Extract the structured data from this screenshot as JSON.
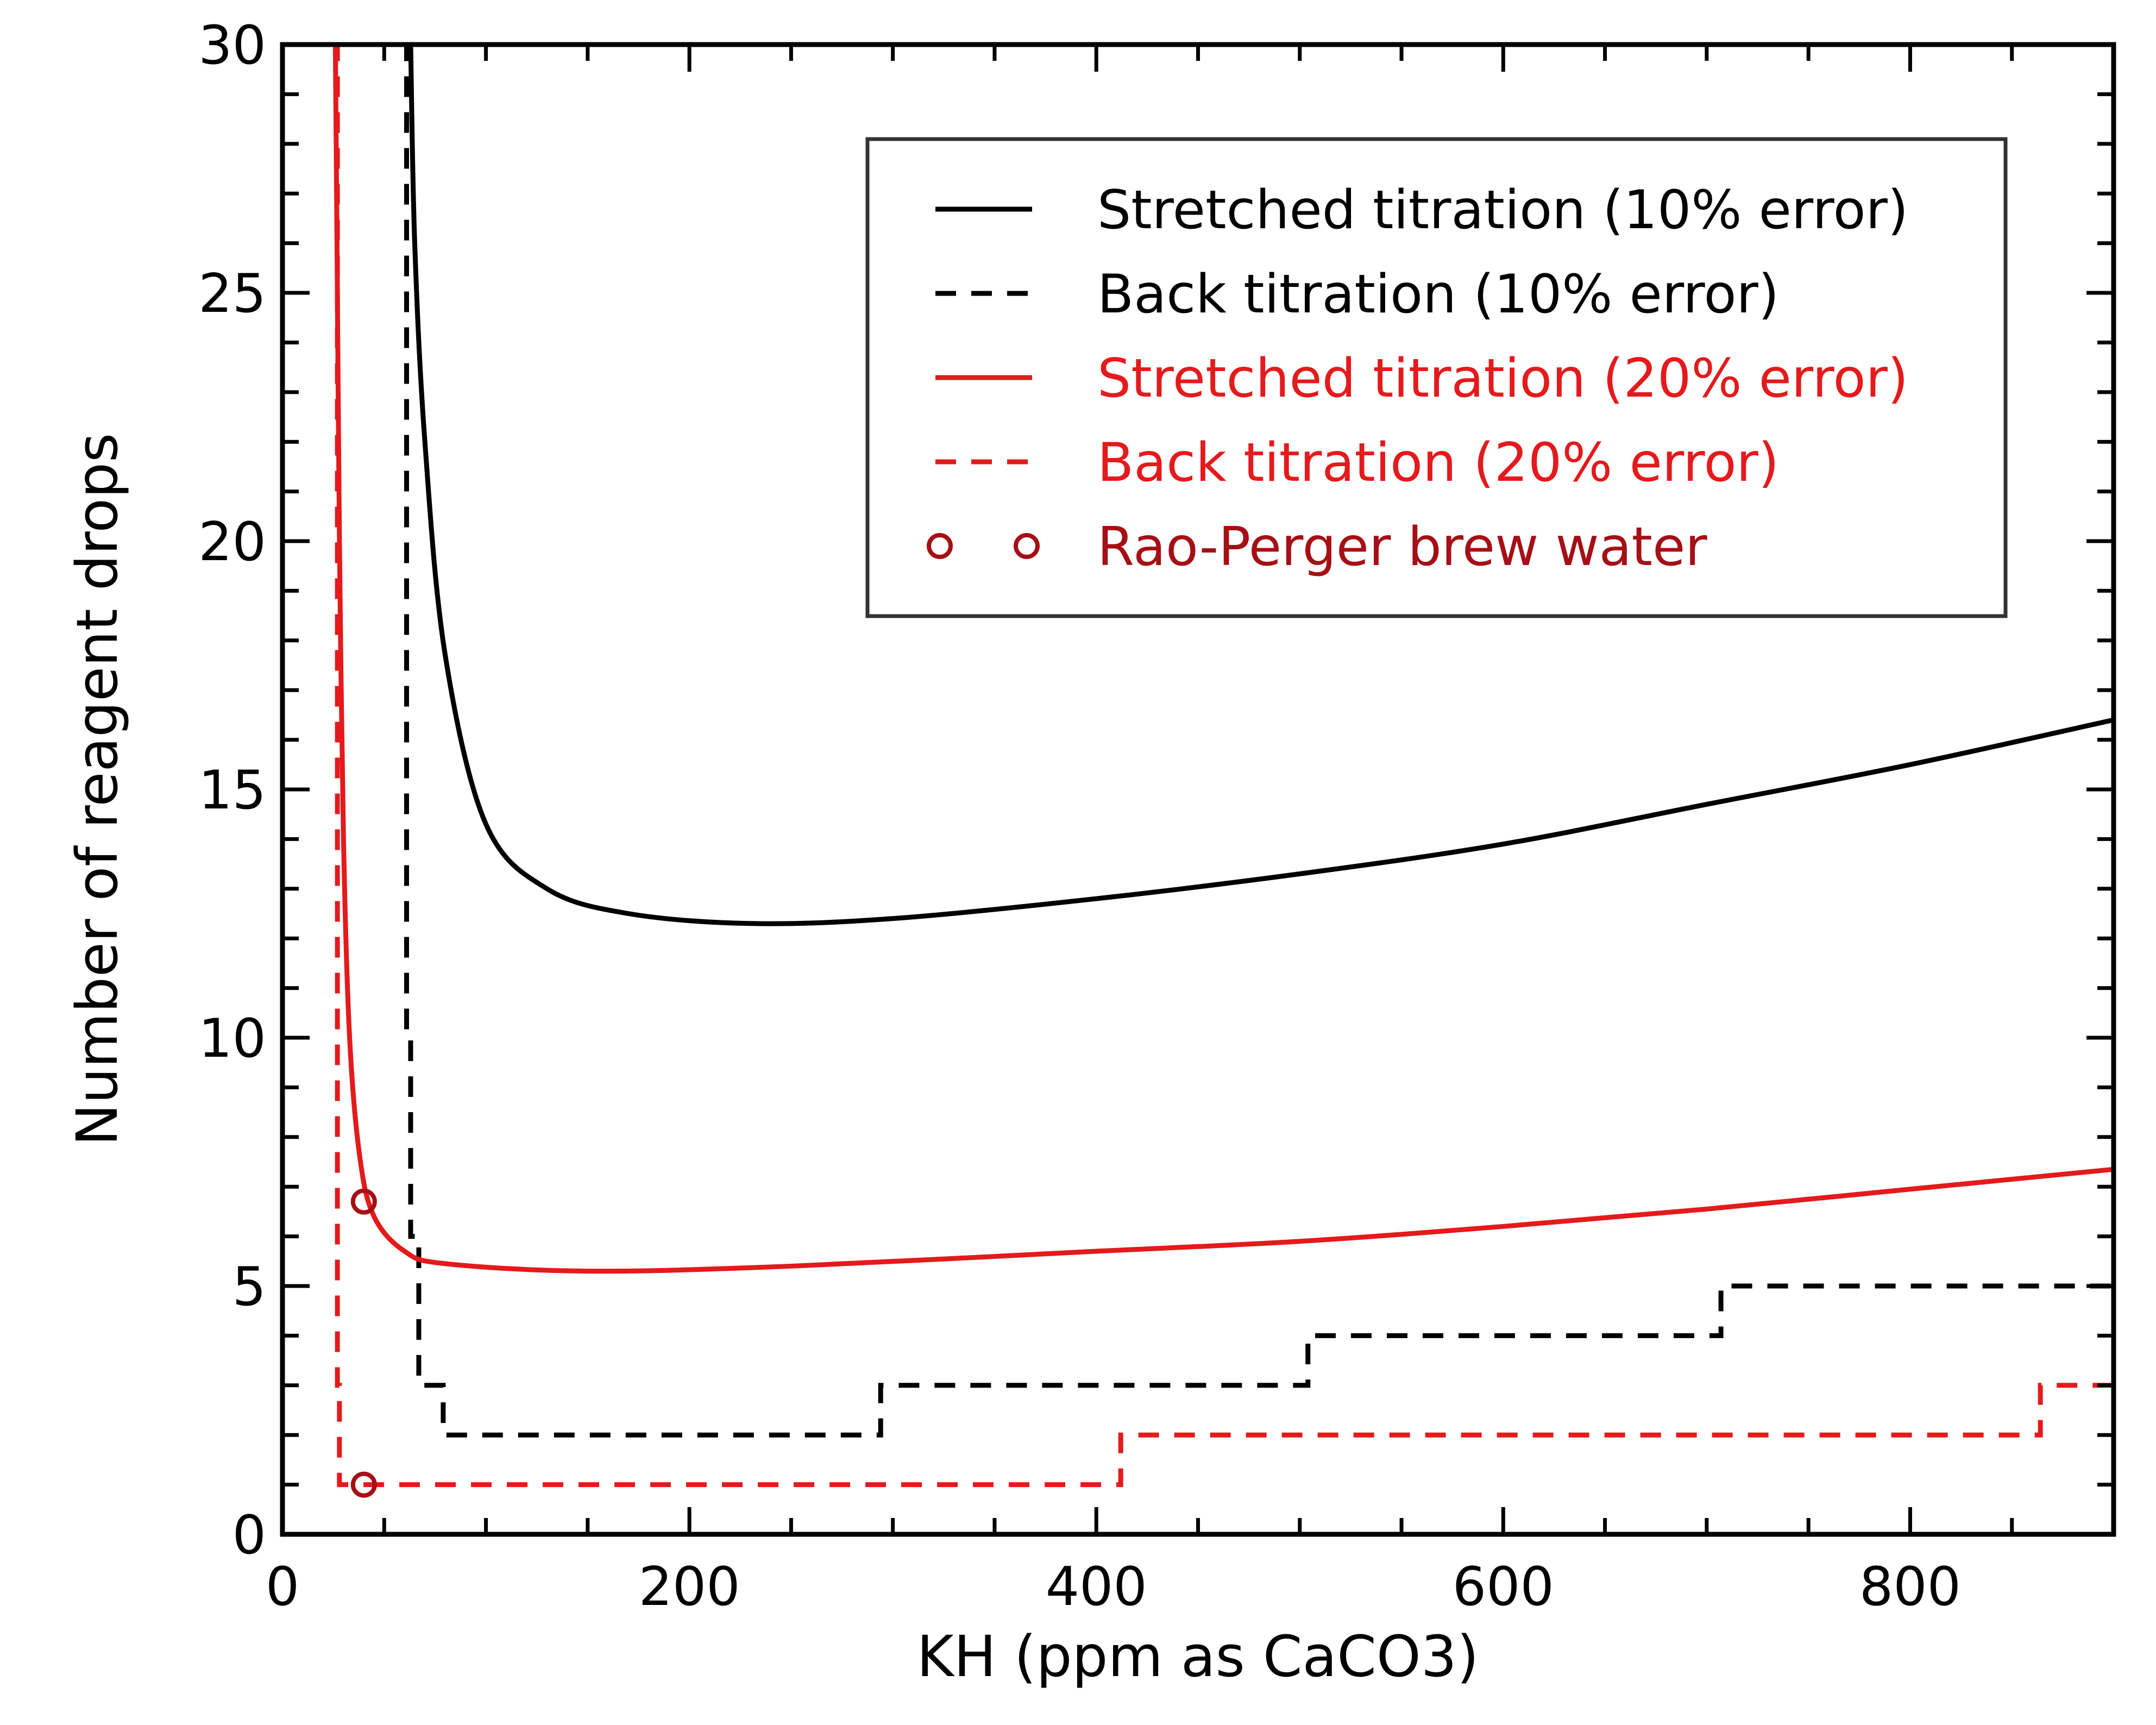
{
  "chart_data": {
    "type": "line",
    "xlabel": "KH (ppm as CaCO3)",
    "ylabel": "Number of reagent drops",
    "xlim": [
      0,
      900
    ],
    "ylim": [
      0,
      30
    ],
    "xticks": [
      0,
      200,
      400,
      600,
      800
    ],
    "yticks": [
      0,
      5,
      10,
      15,
      20,
      25,
      30
    ],
    "grid": false,
    "legend_position": "top-right",
    "colors": {
      "black": "#000000",
      "red": "#e41a1c",
      "darkred": "#a50f15"
    },
    "series": [
      {
        "name": "Stretched titration (10% error)",
        "style": "solid",
        "color": "#000000",
        "x": [
          63,
          65,
          70,
          80,
          100,
          130,
          170,
          230,
          300,
          400,
          500,
          600,
          700,
          800,
          900
        ],
        "y": [
          30,
          26,
          22,
          17.7,
          14.3,
          13.0,
          12.5,
          12.3,
          12.4,
          12.8,
          13.3,
          13.9,
          14.7,
          15.5,
          16.4
        ]
      },
      {
        "name": "Back titration (10% error)",
        "style": "dashed-step",
        "color": "#000000",
        "x": [
          59,
          61,
          63,
          67,
          79,
          294,
          504,
          707,
          900
        ],
        "y": [
          30,
          10,
          6,
          3,
          2,
          3,
          4,
          5,
          5
        ]
      },
      {
        "name": "Stretched titration (20% error)",
        "style": "solid",
        "color": "#e41a1c",
        "x": [
          26,
          27,
          28,
          30,
          33,
          38,
          45,
          60,
          80,
          150,
          250,
          400,
          500,
          600,
          700,
          800,
          900
        ],
        "y": [
          30,
          25,
          20,
          14,
          10,
          7.6,
          6.4,
          5.7,
          5.45,
          5.3,
          5.4,
          5.7,
          5.9,
          6.2,
          6.55,
          6.95,
          7.35
        ]
      },
      {
        "name": "Back titration (20% error)",
        "style": "dashed-step",
        "color": "#e41a1c",
        "x": [
          25,
          27,
          28,
          412,
          864,
          900
        ],
        "y": [
          30,
          3,
          1,
          2,
          3,
          3
        ]
      },
      {
        "name": "Rao-Perger brew water",
        "style": "markers-open-circle",
        "color": "#a50f15",
        "x": [
          40,
          40
        ],
        "y": [
          6.7,
          1
        ]
      }
    ]
  }
}
